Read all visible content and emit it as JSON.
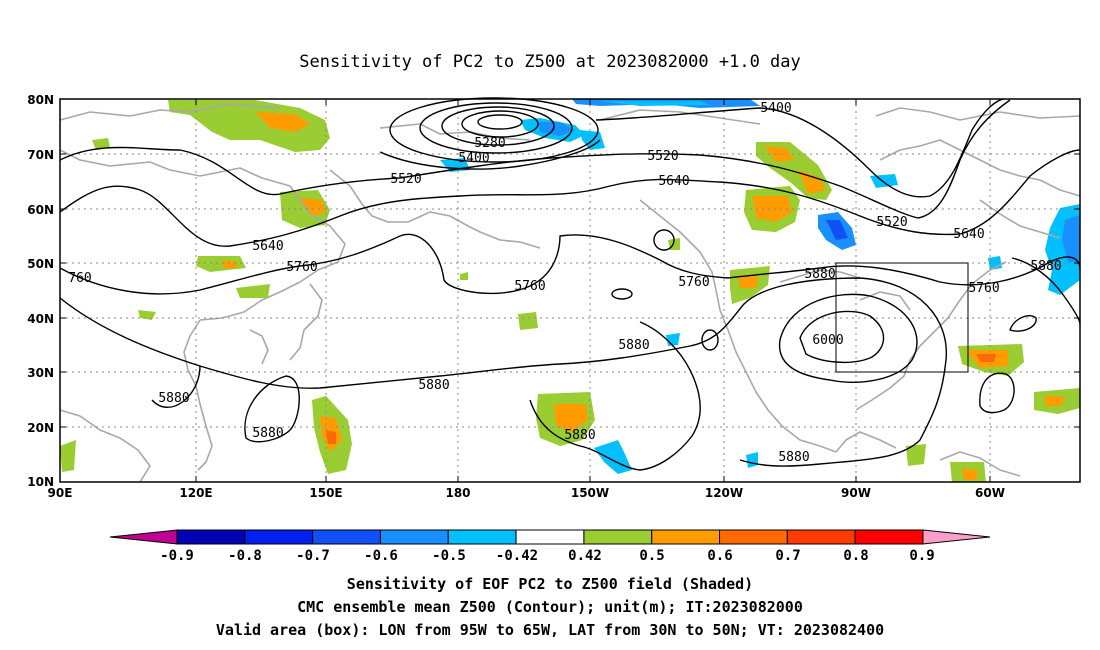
{
  "title": "Sensitivity of PC2 to Z500 at 2023082000 +1.0 day",
  "lat_ticks": [
    "80N",
    "70N",
    "60N",
    "50N",
    "40N",
    "30N",
    "20N",
    "10N"
  ],
  "lon_ticks": [
    "90E",
    "120E",
    "150E",
    "180",
    "150W",
    "120W",
    "90W",
    "60W"
  ],
  "contour_labels": [
    {
      "text": "5400",
      "group": "ridge"
    },
    {
      "text": "5280",
      "group": "low"
    },
    {
      "text": "5400",
      "group": "low"
    },
    {
      "text": "5520",
      "group": "mid"
    },
    {
      "text": "5520",
      "group": "mid"
    },
    {
      "text": "5520",
      "group": "mid"
    },
    {
      "text": "5640",
      "group": "mid"
    },
    {
      "text": "5640",
      "group": "mid"
    },
    {
      "text": "5640",
      "group": "mid"
    },
    {
      "text": "760",
      "group": "mid"
    },
    {
      "text": "5760",
      "group": "mid"
    },
    {
      "text": "5760",
      "group": "mid"
    },
    {
      "text": "5760",
      "group": "mid"
    },
    {
      "text": "5760",
      "group": "mid"
    },
    {
      "text": "5880",
      "group": "high"
    },
    {
      "text": "5880",
      "group": "high"
    },
    {
      "text": "5880",
      "group": "high"
    },
    {
      "text": "5880",
      "group": "high"
    },
    {
      "text": "5880",
      "group": "high"
    },
    {
      "text": "5880",
      "group": "high"
    },
    {
      "text": "5880",
      "group": "high"
    },
    {
      "text": "5880",
      "group": "high"
    },
    {
      "text": "6000",
      "group": "high"
    }
  ],
  "colorbar": {
    "labels": [
      "-0.9",
      "-0.8",
      "-0.7",
      "-0.6",
      "-0.5",
      "-0.42",
      "0.42",
      "0.5",
      "0.6",
      "0.7",
      "0.8",
      "0.9"
    ],
    "colors": [
      "#c00090",
      "#0000b4",
      "#0020f0",
      "#1050f5",
      "#1890ff",
      "#00c0ff",
      "#ffffff",
      "#9acd32",
      "#ff9c00",
      "#ff6a00",
      "#ff3a00",
      "#ff0000",
      "#ff9ec8"
    ]
  },
  "valid_area": {
    "lon_from": "95W",
    "lon_to": "65W",
    "lat_from": "30N",
    "lat_to": "50N"
  },
  "captions": [
    "Sensitivity of EOF PC2 to Z500 field (Shaded)",
    "CMC ensemble mean Z500 (Contour); unit(m); IT:2023082000",
    "Valid area (box): LON from 95W to 65W, LAT from 30N to 50N; VT: 2023082400"
  ]
}
